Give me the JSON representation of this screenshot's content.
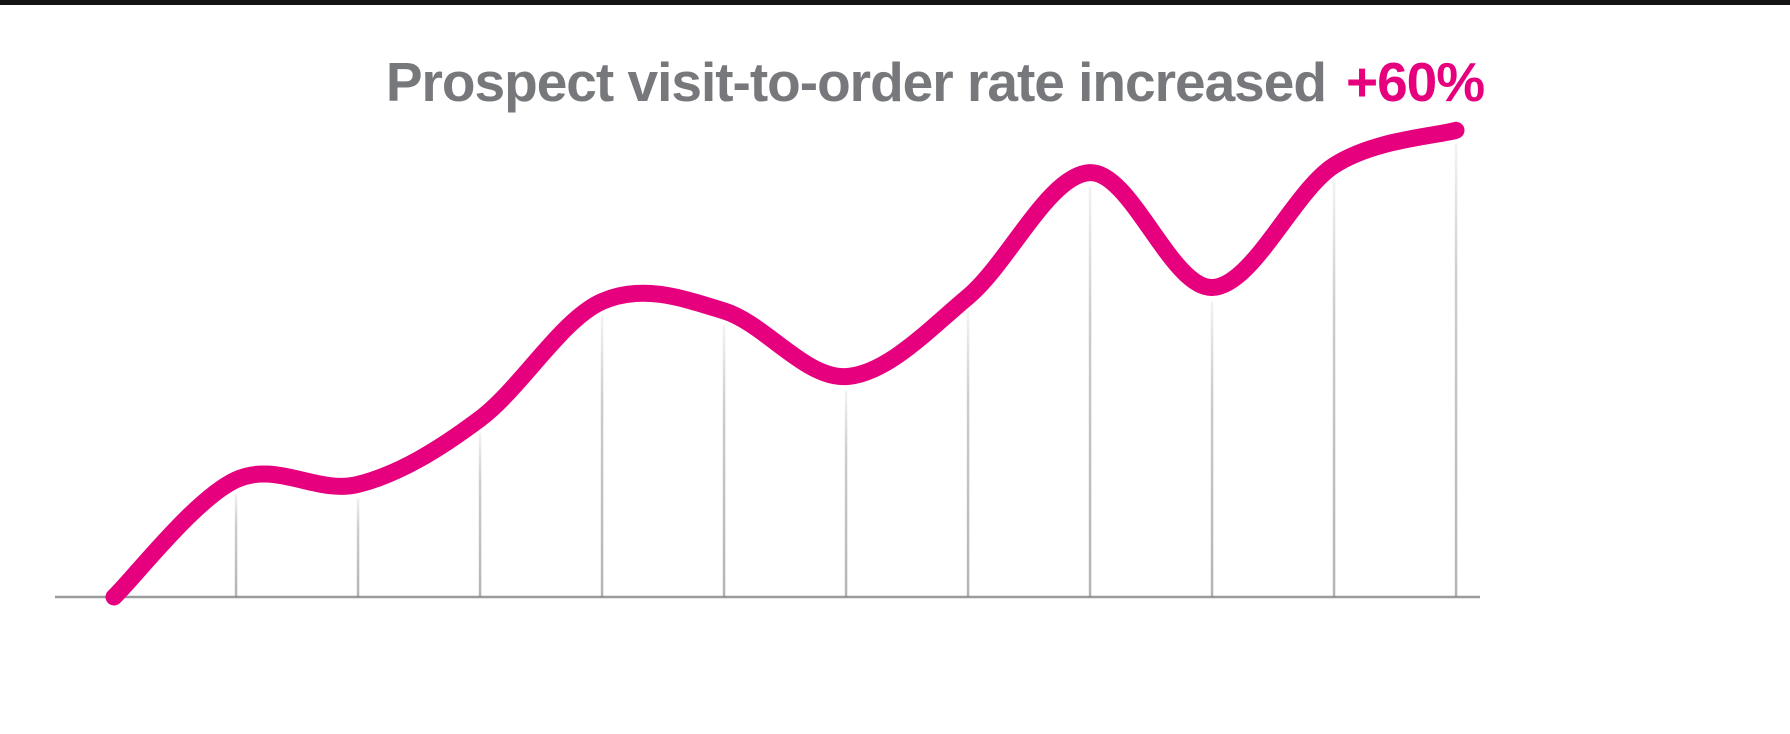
{
  "page": {
    "background_color": "#ffffff",
    "top_bar_color": "#141414"
  },
  "header": {
    "title_color": "#77787B",
    "annotation_color": "#E6007E"
  },
  "chart_data": {
    "type": "line",
    "title": "Prospect visit-to-order rate increased",
    "annotation": "+60%",
    "x": [
      0,
      1,
      2,
      3,
      4,
      5,
      6,
      7,
      8,
      9,
      10,
      11
    ],
    "values": [
      0,
      25,
      24,
      38,
      63,
      61,
      47,
      64,
      90.5,
      66,
      92,
      99.5
    ],
    "ylim": [
      0,
      100
    ],
    "xlabel": "",
    "ylabel": "",
    "axis_tick_labels": "none",
    "legend": "none",
    "grid": "vertical drop lines from each data point to the x-axis, light gray with fade",
    "line_color": "#E6007E",
    "line_width": 17,
    "axis_color": "#9B9B9B",
    "gridline_color": "#828282",
    "curve_style": "smooth spline",
    "notes": "Decorative unlabeled trend curve rising left to right with two local peaks and troughs, ending at its maximum"
  }
}
